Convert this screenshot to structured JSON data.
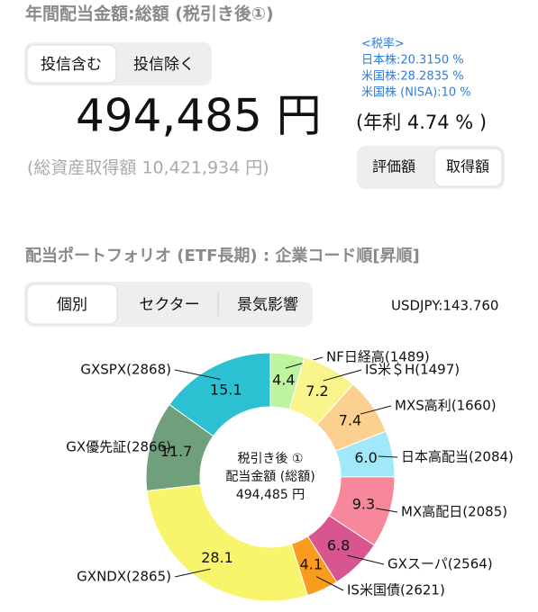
{
  "header": {
    "title": "年間配当金額:総額 (税引き後①)",
    "filter_tabs": [
      "投信含む",
      "投信除く"
    ],
    "tax_rates": [
      "<税率>",
      "日本株:20.3150 %",
      "米国株:28.2835 %",
      "米国株 (NISA):10 %"
    ],
    "amount": "494,485 円",
    "yield": "(年利 4.74 % )",
    "total_cost": "(総資産取得額 10,421,934 円)",
    "basis_tabs": [
      "評価額",
      "取得額"
    ]
  },
  "portfolio": {
    "title": "配当ポートフォリオ (ETF長期) : 企業コード順[昇順]",
    "view_tabs": [
      "個別",
      "セクター",
      "景気影響"
    ],
    "fx_rate": "USDJPY:143.760"
  },
  "chart_data": {
    "type": "pie",
    "center_label": [
      "税引き後 ①",
      "配当金額 (総額)",
      "494,485 円"
    ],
    "categories": [
      "NF日経高(1489)",
      "IS米＄H(1497)",
      "MXS高利(1660)",
      "日本高配当(2084)",
      "MX高配日(2085)",
      "GXスーパ(2564)",
      "IS米国債(2621)",
      "GXNDX(2865)",
      "GX優先証(2866)",
      "GXSPX(2868)"
    ],
    "values": [
      4.4,
      7.2,
      7.4,
      6.0,
      9.3,
      6.8,
      4.1,
      28.1,
      11.7,
      15.1
    ],
    "value_labels": [
      "4.4",
      "7.2",
      "7.4",
      "6.0",
      "9.3",
      "6.8",
      "4.1",
      "28.1",
      "11.7",
      "15.1"
    ],
    "colors": [
      "#bdf59e",
      "#f9f48c",
      "#fcd08e",
      "#a2e8fb",
      "#f7889c",
      "#d8558f",
      "#f99c1d",
      "#f8f56c",
      "#6f9f7b",
      "#2bc1d2"
    ]
  }
}
